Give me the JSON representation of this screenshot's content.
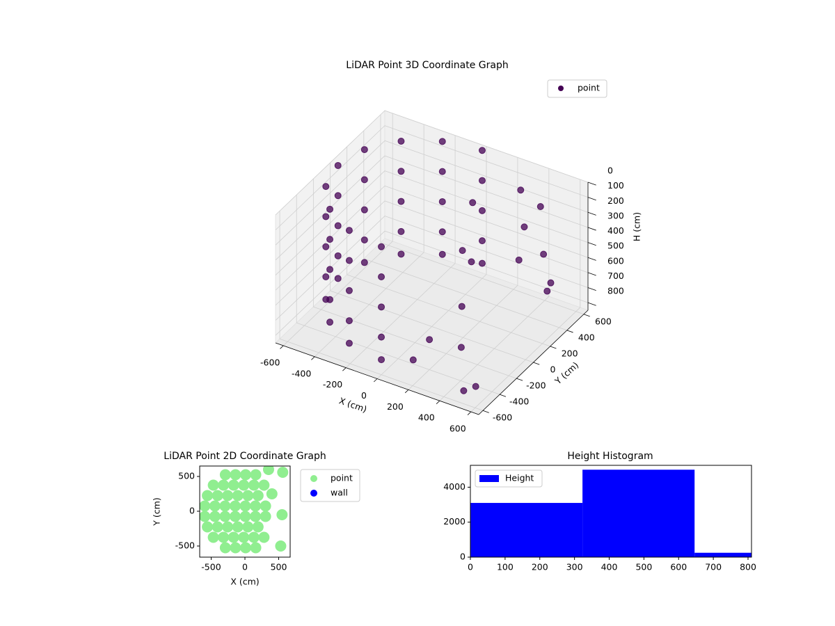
{
  "chart_data": [
    {
      "type": "scatter3d",
      "title": "LiDAR Point 3D Coordinate Graph",
      "xlabel": "X (cm)",
      "ylabel": "Y (cm)",
      "zlabel": "H (cm)",
      "xlim": [
        -650,
        650
      ],
      "ylim": [
        -650,
        650
      ],
      "zlim": [
        850,
        0
      ],
      "xticks": [
        -600,
        -400,
        -200,
        0,
        200,
        400,
        600
      ],
      "yticks": [
        -600,
        -400,
        -200,
        0,
        200,
        400,
        600
      ],
      "zticks": [
        0,
        100,
        200,
        300,
        400,
        500,
        600,
        700,
        800
      ],
      "grid": true,
      "legend": "upper right",
      "series": [
        {
          "name": "point",
          "color": "#440154",
          "x": [
            0,
            -230,
            -424,
            -554,
            -600,
            -554,
            -424,
            -230,
            0,
            0,
            -230,
            -424,
            -554,
            -600,
            -554,
            -424,
            -230,
            0,
            0,
            -230,
            -424,
            -554,
            -600,
            -554,
            -424,
            -230,
            0,
            0,
            -230,
            -424,
            -554,
            -600,
            -554,
            -424,
            -230,
            0,
            0,
            -230,
            -424,
            -554,
            -600,
            -554,
            -424,
            -230,
            0,
            300,
            350,
            400,
            500,
            550,
            600,
            450,
            250,
            300,
            200,
            350,
            150,
            100,
            200,
            500,
            550
          ],
          "y": [
            600,
            554,
            424,
            230,
            0,
            -230,
            -424,
            -554,
            -600,
            600,
            554,
            424,
            230,
            0,
            -230,
            -424,
            -554,
            -600,
            600,
            554,
            424,
            230,
            0,
            -230,
            -424,
            -554,
            -600,
            600,
            554,
            424,
            230,
            0,
            -230,
            -424,
            -554,
            -600,
            600,
            554,
            424,
            230,
            0,
            -230,
            -424,
            -554,
            -600,
            500,
            450,
            550,
            400,
            350,
            300,
            200,
            -100,
            -200,
            -400,
            -300,
            -500,
            300,
            100,
            -550,
            -500
          ],
          "h": [
            0,
            0,
            0,
            0,
            0,
            0,
            0,
            0,
            0,
            200,
            200,
            200,
            200,
            200,
            200,
            200,
            200,
            200,
            400,
            400,
            400,
            400,
            400,
            400,
            400,
            400,
            400,
            600,
            600,
            600,
            600,
            600,
            600,
            600,
            600,
            600,
            750,
            750,
            750,
            750,
            750,
            750,
            750,
            750,
            750,
            100,
            300,
            200,
            400,
            600,
            500,
            350,
            200,
            500,
            650,
            700,
            750,
            150,
            400,
            800,
            780
          ]
        }
      ]
    },
    {
      "type": "scatter",
      "title": "LiDAR Point 2D Coordinate Graph",
      "xlabel": "X (cm)",
      "ylabel": "Y (cm)",
      "xlim": [
        -670,
        670
      ],
      "ylim": [
        -660,
        650
      ],
      "xticks": [
        -500,
        0,
        500
      ],
      "yticks": [
        -500,
        0,
        500
      ],
      "legend": "outside right",
      "series": [
        {
          "name": "point",
          "color": "#90ee90",
          "x": [
            -290,
            -140,
            10,
            160,
            -290,
            -140,
            10,
            160,
            -468,
            -318,
            -168,
            -18,
            132,
            282,
            -468,
            -318,
            -168,
            -18,
            132,
            282,
            -556,
            -406,
            -256,
            -106,
            44,
            194,
            -556,
            -406,
            -256,
            -106,
            44,
            194,
            -595,
            -445,
            -295,
            -145,
            5,
            155,
            305,
            -595,
            -445,
            -295,
            -145,
            5,
            155,
            305,
            400,
            550,
            530,
            560,
            350
          ],
          "y": [
            525,
            525,
            525,
            525,
            -525,
            -525,
            -525,
            -525,
            375,
            375,
            375,
            375,
            375,
            375,
            -375,
            -375,
            -375,
            -375,
            -375,
            -375,
            225,
            225,
            225,
            225,
            225,
            225,
            -225,
            -225,
            -225,
            -225,
            -225,
            -225,
            75,
            75,
            75,
            75,
            75,
            75,
            75,
            -75,
            -75,
            -75,
            -75,
            -75,
            -75,
            -75,
            250,
            -50,
            -500,
            560,
            600
          ]
        },
        {
          "name": "wall",
          "color": "#0000ff",
          "x": [],
          "y": []
        }
      ]
    },
    {
      "type": "histogram",
      "title": "Height Histogram",
      "bins": [
        0,
        323,
        646,
        810
      ],
      "xlim": [
        0,
        810
      ],
      "ylim": [
        0,
        5250
      ],
      "xticks": [
        0,
        100,
        200,
        300,
        400,
        500,
        600,
        700,
        800
      ],
      "yticks": [
        0,
        2000,
        4000
      ],
      "legend": "upper left",
      "series": [
        {
          "name": "Height",
          "color": "#0000ff",
          "values": [
            3100,
            5000,
            250
          ]
        }
      ]
    }
  ]
}
